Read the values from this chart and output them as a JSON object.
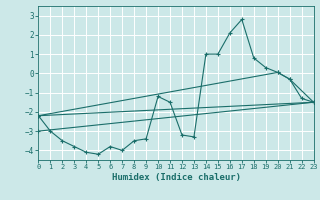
{
  "xlabel": "Humidex (Indice chaleur)",
  "xlim": [
    0,
    23
  ],
  "ylim": [
    -4.5,
    3.5
  ],
  "yticks": [
    -4,
    -3,
    -2,
    -1,
    0,
    1,
    2,
    3
  ],
  "xticks": [
    0,
    1,
    2,
    3,
    4,
    5,
    6,
    7,
    8,
    9,
    10,
    11,
    12,
    13,
    14,
    15,
    16,
    17,
    18,
    19,
    20,
    21,
    22,
    23
  ],
  "bg_color": "#cce8e8",
  "grid_color": "#b8d8d8",
  "line_color": "#1a6e6a",
  "series": [
    {
      "x": [
        0,
        1,
        2,
        3,
        4,
        5,
        6,
        7,
        8,
        9,
        10,
        11,
        12,
        13,
        14,
        15,
        16,
        17,
        18,
        19,
        20,
        21,
        22,
        23
      ],
      "y": [
        -2.2,
        -3.0,
        -3.5,
        -3.8,
        -4.1,
        -4.2,
        -3.8,
        -4.0,
        -3.5,
        -3.4,
        -1.2,
        -1.5,
        -3.2,
        -3.3,
        1.0,
        1.0,
        2.1,
        2.8,
        0.8,
        0.3,
        0.05,
        -0.3,
        -1.3,
        -1.5
      ]
    },
    {
      "x": [
        0,
        20,
        21,
        23
      ],
      "y": [
        -2.2,
        0.05,
        -0.3,
        -1.5
      ]
    },
    {
      "x": [
        0,
        23
      ],
      "y": [
        -2.2,
        -1.5
      ]
    },
    {
      "x": [
        0,
        23
      ],
      "y": [
        -3.0,
        -1.5
      ]
    }
  ]
}
